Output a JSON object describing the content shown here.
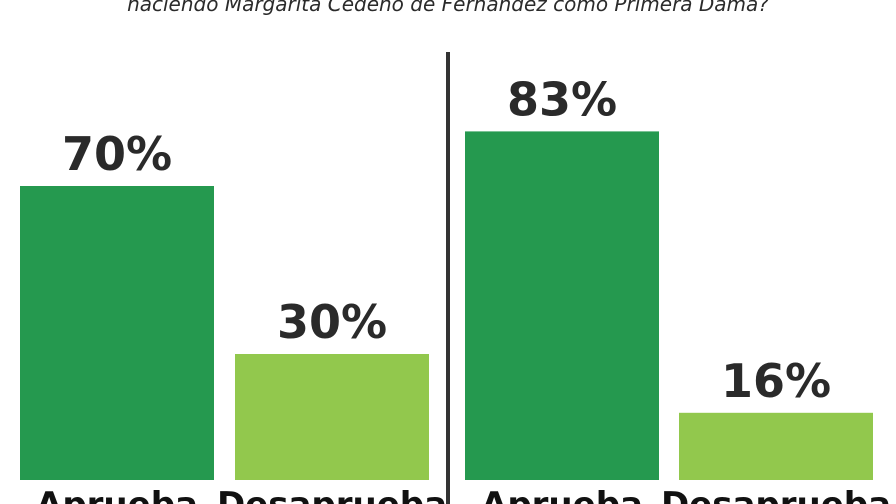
{
  "question": "haciendo Margarita Cedeño de Fernández como Primera Dama?",
  "colors": {
    "aprueba": "#25994f",
    "desaprueba": "#92c84d",
    "divider": "#333333",
    "text": "#2a2a2a"
  },
  "chart_data": [
    {
      "type": "bar",
      "categories": [
        "Aprueba",
        "Desaprueba"
      ],
      "values": [
        70,
        30
      ],
      "value_labels": [
        "70%",
        "30%"
      ],
      "ylim": [
        0,
        100
      ]
    },
    {
      "type": "bar",
      "categories": [
        "Aprueba",
        "Desaprueba"
      ],
      "values": [
        83,
        16
      ],
      "value_labels": [
        "83%",
        "16%"
      ],
      "ylim": [
        0,
        100
      ]
    }
  ]
}
